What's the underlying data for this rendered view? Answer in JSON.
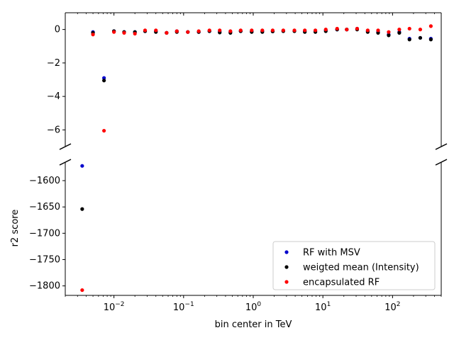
{
  "chart_data": {
    "type": "scatter",
    "broken_y_axis": true,
    "xscale": "log",
    "xlabel": "bin center in TeV",
    "ylabel": "r2 score",
    "xlim": [
      0.002,
      500
    ],
    "x_major_tick_labels": [
      {
        "value": 0.01,
        "base": "10",
        "exp": "−2"
      },
      {
        "value": 0.1,
        "base": "10",
        "exp": "−1"
      },
      {
        "value": 1,
        "base": "10",
        "exp": "0"
      },
      {
        "value": 10,
        "base": "10",
        "exp": "1"
      },
      {
        "value": 100,
        "base": "10",
        "exp": "2"
      }
    ],
    "panels": [
      {
        "name": "upper",
        "ylim": [
          -7,
          1.0
        ],
        "yticks": [
          0,
          -2,
          -4,
          -6
        ],
        "ytick_labels": [
          "0",
          "−2",
          "−4",
          "−6"
        ]
      },
      {
        "name": "lower",
        "ylim": [
          -1818,
          -1565
        ],
        "yticks": [
          -1600,
          -1650,
          -1700,
          -1750,
          -1800
        ],
        "ytick_labels": [
          "−1600",
          "−1650",
          "−1700",
          "−1750",
          "−1800"
        ]
      }
    ],
    "legend_position": "lower-right",
    "series": [
      {
        "name": "RF with MSV",
        "color": "#0000cc",
        "points": [
          [
            0.0035,
            -1572
          ],
          [
            0.005,
            -0.15
          ],
          [
            0.0072,
            -2.9
          ],
          [
            0.01,
            -0.1
          ],
          [
            0.014,
            -0.15
          ],
          [
            0.02,
            -0.15
          ],
          [
            0.028,
            -0.1
          ],
          [
            0.04,
            -0.1
          ],
          [
            0.057,
            -0.2
          ],
          [
            0.08,
            -0.1
          ],
          [
            0.115,
            -0.15
          ],
          [
            0.165,
            -0.15
          ],
          [
            0.235,
            -0.1
          ],
          [
            0.33,
            -0.12
          ],
          [
            0.47,
            -0.15
          ],
          [
            0.66,
            -0.1
          ],
          [
            0.95,
            -0.12
          ],
          [
            1.35,
            -0.1
          ],
          [
            1.9,
            -0.1
          ],
          [
            2.7,
            -0.08
          ],
          [
            3.9,
            -0.08
          ],
          [
            5.5,
            -0.1
          ],
          [
            7.8,
            -0.1
          ],
          [
            11,
            -0.05
          ],
          [
            16,
            0.0
          ],
          [
            22,
            0.0
          ],
          [
            31,
            0.05
          ],
          [
            44,
            -0.1
          ],
          [
            62,
            -0.15
          ],
          [
            88,
            -0.3
          ],
          [
            125,
            -0.15
          ],
          [
            175,
            -0.55
          ],
          [
            250,
            -0.5
          ],
          [
            355,
            -0.55
          ]
        ]
      },
      {
        "name": "weigted mean (Intensity)",
        "color": "#000000",
        "points": [
          [
            0.0035,
            -1654
          ],
          [
            0.005,
            -0.2
          ],
          [
            0.0072,
            -3.05
          ],
          [
            0.01,
            -0.1
          ],
          [
            0.014,
            -0.15
          ],
          [
            0.02,
            -0.15
          ],
          [
            0.028,
            -0.1
          ],
          [
            0.04,
            -0.15
          ],
          [
            0.057,
            -0.2
          ],
          [
            0.08,
            -0.15
          ],
          [
            0.115,
            -0.15
          ],
          [
            0.165,
            -0.15
          ],
          [
            0.235,
            -0.1
          ],
          [
            0.33,
            -0.18
          ],
          [
            0.47,
            -0.2
          ],
          [
            0.66,
            -0.1
          ],
          [
            0.95,
            -0.15
          ],
          [
            1.35,
            -0.15
          ],
          [
            1.9,
            -0.12
          ],
          [
            2.7,
            -0.1
          ],
          [
            3.9,
            -0.1
          ],
          [
            5.5,
            -0.15
          ],
          [
            7.8,
            -0.15
          ],
          [
            11,
            -0.1
          ],
          [
            16,
            0.0
          ],
          [
            22,
            0.0
          ],
          [
            31,
            0.0
          ],
          [
            44,
            -0.15
          ],
          [
            62,
            -0.2
          ],
          [
            88,
            -0.35
          ],
          [
            125,
            -0.2
          ],
          [
            175,
            -0.6
          ],
          [
            250,
            -0.5
          ],
          [
            355,
            -0.6
          ]
        ]
      },
      {
        "name": "encapsulated RF",
        "color": "#ff0000",
        "points": [
          [
            0.0035,
            -1808
          ],
          [
            0.005,
            -0.3
          ],
          [
            0.0072,
            -6.05
          ],
          [
            0.01,
            -0.15
          ],
          [
            0.014,
            -0.2
          ],
          [
            0.02,
            -0.25
          ],
          [
            0.028,
            -0.05
          ],
          [
            0.04,
            -0.05
          ],
          [
            0.057,
            -0.2
          ],
          [
            0.08,
            -0.1
          ],
          [
            0.115,
            -0.15
          ],
          [
            0.165,
            -0.1
          ],
          [
            0.235,
            -0.05
          ],
          [
            0.33,
            -0.05
          ],
          [
            0.47,
            -0.1
          ],
          [
            0.66,
            -0.05
          ],
          [
            0.95,
            -0.05
          ],
          [
            1.35,
            -0.05
          ],
          [
            1.9,
            -0.05
          ],
          [
            2.7,
            -0.05
          ],
          [
            3.9,
            -0.05
          ],
          [
            5.5,
            -0.05
          ],
          [
            7.8,
            -0.05
          ],
          [
            11,
            0.0
          ],
          [
            16,
            0.05
          ],
          [
            22,
            0.0
          ],
          [
            31,
            0.05
          ],
          [
            44,
            -0.05
          ],
          [
            62,
            -0.05
          ],
          [
            88,
            -0.15
          ],
          [
            125,
            0.0
          ],
          [
            175,
            0.05
          ],
          [
            250,
            0.0
          ],
          [
            355,
            0.2
          ]
        ]
      }
    ]
  }
}
